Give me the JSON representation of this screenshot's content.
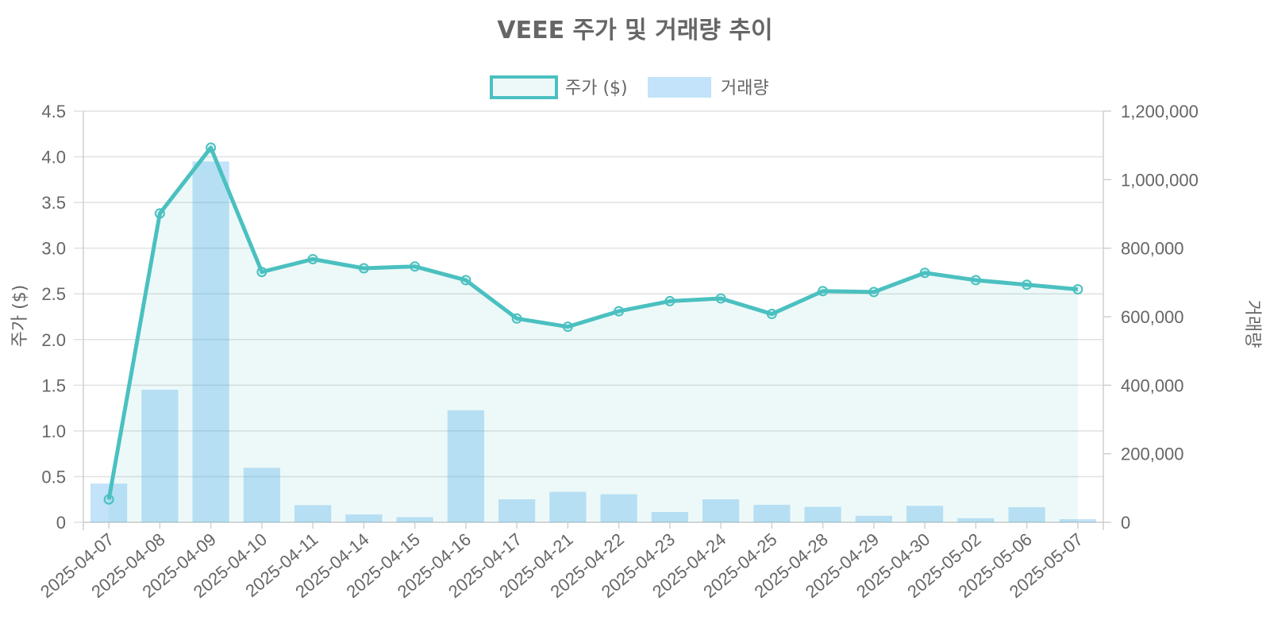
{
  "chart_data": {
    "type": "bar",
    "title": "VEEE 주가 및 거래량 추이",
    "categories": [
      "2025-04-07",
      "2025-04-08",
      "2025-04-09",
      "2025-04-10",
      "2025-04-11",
      "2025-04-14",
      "2025-04-15",
      "2025-04-16",
      "2025-04-17",
      "2025-04-21",
      "2025-04-22",
      "2025-04-23",
      "2025-04-24",
      "2025-04-25",
      "2025-04-28",
      "2025-04-29",
      "2025-04-30",
      "2025-05-02",
      "2025-05-06",
      "2025-05-07"
    ],
    "series": [
      {
        "name": "주가 ($)",
        "type": "line",
        "axis": "left",
        "color": "#4BC0C0",
        "fill": "rgba(75,192,192,0.1)",
        "values": [
          0.25,
          3.38,
          4.1,
          2.74,
          2.88,
          2.78,
          2.8,
          2.65,
          2.23,
          2.14,
          2.31,
          2.42,
          2.45,
          2.28,
          2.53,
          2.52,
          2.73,
          2.65,
          2.6,
          2.55
        ]
      },
      {
        "name": "거래량",
        "type": "bar",
        "axis": "right",
        "color": "rgba(54,162,235,0.3)",
        "values": [
          113000,
          387000,
          1053000,
          159000,
          50000,
          23000,
          15000,
          327000,
          67000,
          89000,
          82000,
          30000,
          67000,
          51000,
          45000,
          19000,
          48000,
          12000,
          44000,
          9000
        ]
      }
    ],
    "y_left": {
      "label": "주가 ($)",
      "min": 0,
      "max": 4.5,
      "ticks": [
        "0",
        "0.5",
        "1.0",
        "1.5",
        "2.0",
        "2.5",
        "3.0",
        "3.5",
        "4.0",
        "4.5"
      ]
    },
    "y_right": {
      "label": "거래량",
      "min": 0,
      "max": 1200000,
      "ticks": [
        "0",
        "200,000",
        "400,000",
        "600,000",
        "800,000",
        "1,000,000",
        "1,200,000"
      ]
    },
    "legend": {
      "position": "top",
      "items": [
        "주가 ($)",
        "거래량"
      ]
    },
    "grid": true
  }
}
